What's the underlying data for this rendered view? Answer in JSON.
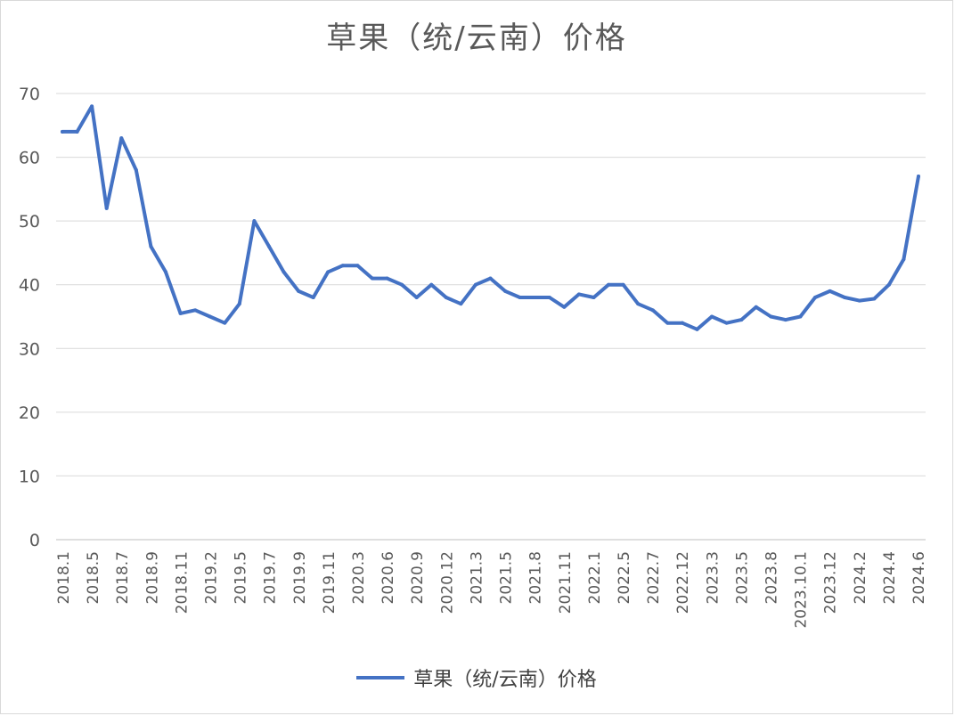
{
  "chart_data": {
    "type": "line",
    "title": "草果（统/云南）价格",
    "xlabel": "",
    "ylabel": "",
    "ylim": [
      0,
      70
    ],
    "yticks": [
      0,
      10,
      20,
      30,
      40,
      50,
      60,
      70
    ],
    "grid": true,
    "legend_position": "bottom",
    "x_tick_labels": [
      "2018.1",
      "2018.5",
      "2018.7",
      "2018.9",
      "2018.11",
      "2019.2",
      "2019.5",
      "2019.7",
      "2019.9",
      "2019.11",
      "2020.3",
      "2020.6",
      "2020.9",
      "2020.12",
      "2021.3",
      "2021.5",
      "2021.8",
      "2021.11",
      "2022.1",
      "2022.5",
      "2022.7",
      "2022.12",
      "2023.3",
      "2023.5",
      "2023.8",
      "2023.10.1",
      "2023.12",
      "2024.2",
      "2024.4",
      "2024.6"
    ],
    "series": [
      {
        "name": "草果（统/云南）价格",
        "color": "#4472C4",
        "values": [
          64,
          64,
          68,
          52,
          63,
          58,
          46,
          42,
          35.5,
          36,
          35,
          34,
          37,
          50,
          46,
          42,
          39,
          38,
          42,
          43,
          43,
          41,
          41,
          40,
          38,
          40,
          38,
          37,
          40,
          41,
          39,
          38,
          38,
          38,
          36.5,
          38.5,
          38,
          40,
          40,
          37,
          36,
          34,
          34,
          33,
          35,
          34,
          34.5,
          36.5,
          35,
          34.5,
          35,
          38,
          39,
          38,
          37.5,
          37.8,
          40,
          44,
          57
        ]
      }
    ]
  }
}
